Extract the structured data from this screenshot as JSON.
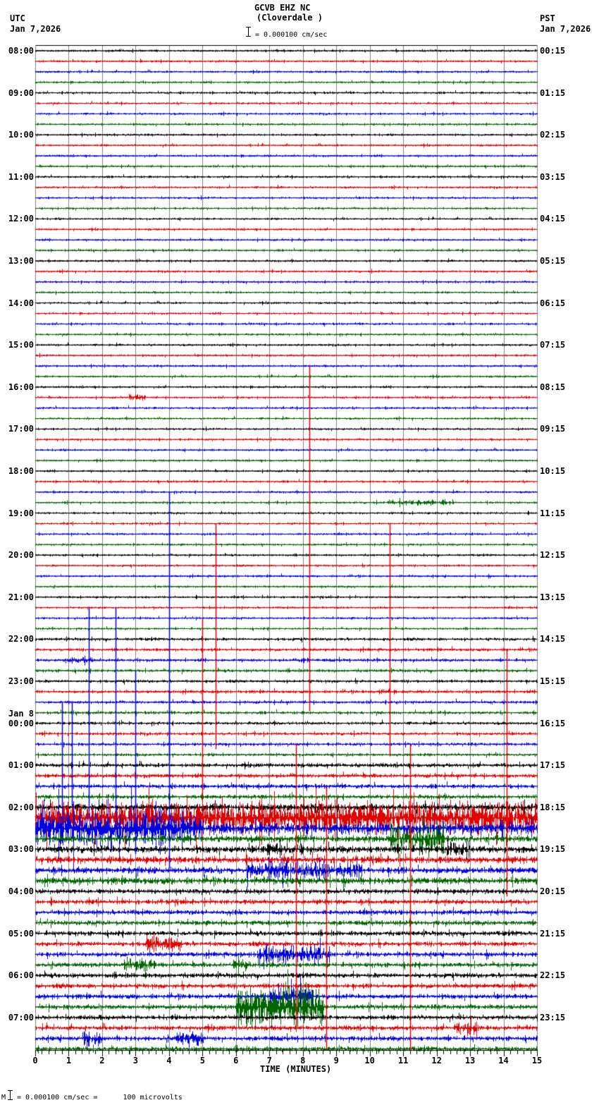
{
  "header": {
    "station": "GCVB EHZ NC",
    "location": "(Cloverdale )",
    "scale_text": "= 0.000100 cm/sec",
    "left_tz": "UTC",
    "left_date": "Jan 7,2026",
    "right_tz": "PST",
    "right_date": "Jan 7,2026"
  },
  "footer": {
    "scale_prefix": "Μ",
    "scale_text": "= 0.000100 cm/sec =      100 microvolts"
  },
  "colors": {
    "traces": [
      "#000000",
      "#e00000",
      "#0000e0",
      "#006400"
    ],
    "grid": "#808080",
    "axis": "#000000"
  },
  "chart_data": {
    "type": "line",
    "title": "GCVB EHZ NC (Cloverdale ) helicorder",
    "xlabel": "TIME (MINUTES)",
    "ylabel": "",
    "xlim": [
      0,
      15
    ],
    "x_ticks": [
      "0",
      "1",
      "2",
      "3",
      "4",
      "5",
      "6",
      "7",
      "8",
      "9",
      "10",
      "11",
      "12",
      "13",
      "14",
      "15"
    ],
    "traces_per_hour": 4,
    "trace_minutes": 15,
    "amplitude_scale": "0.000100 cm/sec = 100 microvolts",
    "left_labels": [
      {
        "text": "08:00",
        "row": 0
      },
      {
        "text": "09:00",
        "row": 4
      },
      {
        "text": "10:00",
        "row": 8
      },
      {
        "text": "11:00",
        "row": 12
      },
      {
        "text": "12:00",
        "row": 16
      },
      {
        "text": "13:00",
        "row": 20
      },
      {
        "text": "14:00",
        "row": 24
      },
      {
        "text": "15:00",
        "row": 28
      },
      {
        "text": "16:00",
        "row": 32
      },
      {
        "text": "17:00",
        "row": 36
      },
      {
        "text": "18:00",
        "row": 40
      },
      {
        "text": "19:00",
        "row": 44
      },
      {
        "text": "20:00",
        "row": 48
      },
      {
        "text": "21:00",
        "row": 52
      },
      {
        "text": "22:00",
        "row": 56
      },
      {
        "text": "23:00",
        "row": 60
      },
      {
        "text": "00:00",
        "row": 64,
        "date": "Jan 8"
      },
      {
        "text": "01:00",
        "row": 68
      },
      {
        "text": "02:00",
        "row": 72
      },
      {
        "text": "03:00",
        "row": 76
      },
      {
        "text": "04:00",
        "row": 80
      },
      {
        "text": "05:00",
        "row": 84
      },
      {
        "text": "06:00",
        "row": 88
      },
      {
        "text": "07:00",
        "row": 92
      }
    ],
    "right_labels": [
      "00:15",
      "01:15",
      "02:15",
      "03:15",
      "04:15",
      "05:15",
      "06:15",
      "07:15",
      "08:15",
      "09:15",
      "10:15",
      "11:15",
      "12:15",
      "13:15",
      "14:15",
      "15:15",
      "16:15",
      "17:15",
      "18:15",
      "19:15",
      "20:15",
      "21:15",
      "22:15",
      "23:15"
    ],
    "rows": 96,
    "base_noise": [
      {
        "from_row": 0,
        "to_row": 55,
        "amp": 1.6
      },
      {
        "from_row": 56,
        "to_row": 67,
        "amp": 2.2
      },
      {
        "from_row": 68,
        "to_row": 71,
        "amp": 3
      },
      {
        "from_row": 72,
        "to_row": 79,
        "amp": 5
      },
      {
        "from_row": 80,
        "to_row": 95,
        "amp": 3.5
      }
    ],
    "events": [
      {
        "row": 33,
        "start_min": 2.8,
        "end_min": 3.3,
        "amp": 5
      },
      {
        "row": 43,
        "start_min": 10.5,
        "end_min": 12.5,
        "amp": 4
      },
      {
        "row": 58,
        "start_min": 0.8,
        "end_min": 1.7,
        "amp": 4
      },
      {
        "row": 58,
        "start_min": 7.8,
        "end_min": 8.3,
        "amp": 4
      },
      {
        "row": 61,
        "start_min": 10.2,
        "end_min": 10.6,
        "amp": 4
      },
      {
        "row": 73,
        "start_min": 0,
        "end_min": 15,
        "amp": 22
      },
      {
        "row": 74,
        "start_min": 0,
        "end_min": 5,
        "amp": 24
      },
      {
        "row": 74,
        "start_min": 5,
        "end_min": 15,
        "amp": 8
      },
      {
        "row": 75,
        "start_min": 10.6,
        "end_min": 12.2,
        "amp": 20
      },
      {
        "row": 76,
        "start_min": 6.8,
        "end_min": 8.0,
        "amp": 8
      },
      {
        "row": 76,
        "start_min": 12.3,
        "end_min": 13.0,
        "amp": 10
      },
      {
        "row": 78,
        "start_min": 6.3,
        "end_min": 9.8,
        "amp": 12
      },
      {
        "row": 85,
        "start_min": 3.3,
        "end_min": 4.4,
        "amp": 12
      },
      {
        "row": 86,
        "start_min": 6.6,
        "end_min": 8.8,
        "amp": 12
      },
      {
        "row": 87,
        "start_min": 2.6,
        "end_min": 3.6,
        "amp": 10
      },
      {
        "row": 87,
        "start_min": 5.9,
        "end_min": 6.4,
        "amp": 8
      },
      {
        "row": 90,
        "start_min": 7.0,
        "end_min": 8.3,
        "amp": 14
      },
      {
        "row": 91,
        "start_min": 6.0,
        "end_min": 8.6,
        "amp": 28
      },
      {
        "row": 93,
        "start_min": 12.5,
        "end_min": 13.2,
        "amp": 10
      },
      {
        "row": 94,
        "start_min": 1.4,
        "end_min": 1.9,
        "amp": 12
      },
      {
        "row": 94,
        "start_min": 4.2,
        "end_min": 5.0,
        "amp": 10
      }
    ],
    "spikes": [
      {
        "row": 36,
        "min": 8.2,
        "up": 90,
        "down": 400,
        "color": 1
      },
      {
        "row": 42,
        "min": 4.0,
        "up": 0,
        "down": 380,
        "color": 2
      },
      {
        "row": 45,
        "min": 5.4,
        "up": 0,
        "down": 320,
        "color": 1
      },
      {
        "row": 45,
        "min": 10.6,
        "up": 0,
        "down": 330,
        "color": 1
      },
      {
        "row": 53,
        "min": 1.6,
        "up": 0,
        "down": 290,
        "color": 2
      },
      {
        "row": 53,
        "min": 2.4,
        "up": 0,
        "down": 290,
        "color": 2
      },
      {
        "row": 54,
        "min": 5.0,
        "up": 0,
        "down": 250,
        "color": 1
      },
      {
        "row": 57,
        "min": 14.1,
        "up": 0,
        "down": 350,
        "color": 1
      },
      {
        "row": 59,
        "min": 3.0,
        "up": 0,
        "down": 260,
        "color": 2
      },
      {
        "row": 61,
        "min": 4.0,
        "up": 0,
        "down": 250,
        "color": 2
      },
      {
        "row": 62,
        "min": 0.8,
        "up": 0,
        "down": 150,
        "color": 2
      },
      {
        "row": 62,
        "min": 1.1,
        "up": 0,
        "down": 150,
        "color": 2
      },
      {
        "row": 66,
        "min": 11.2,
        "up": 0,
        "down": 500,
        "color": 1
      },
      {
        "row": 66,
        "min": 7.8,
        "up": 0,
        "down": 400,
        "color": 1
      },
      {
        "row": 70,
        "min": 8.7,
        "up": 0,
        "down": 380,
        "color": 1
      }
    ]
  }
}
